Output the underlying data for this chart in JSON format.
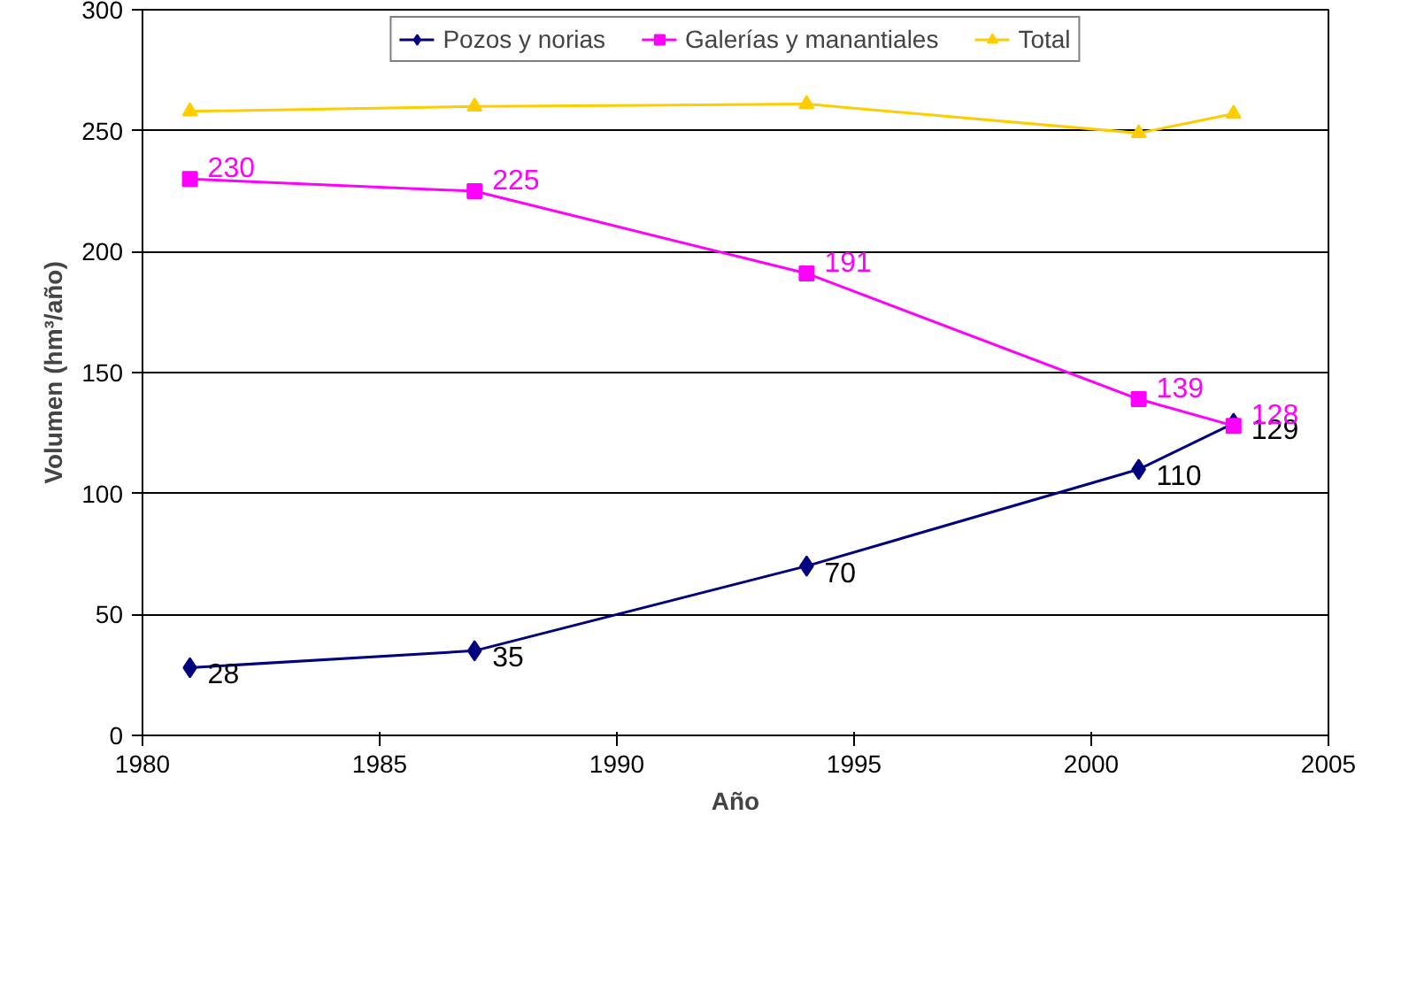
{
  "chart_data": {
    "type": "line",
    "xlabel": "Año",
    "ylabel": "Volumen (hm³/año)",
    "x": [
      1981,
      1987,
      1994,
      2001,
      2003
    ],
    "series": [
      {
        "name": "Pozos y norias",
        "color": "#000080",
        "marker": "diamond",
        "values": [
          28,
          35,
          70,
          110,
          129
        ],
        "value_labels": [
          "28",
          "35",
          "70",
          "110",
          "129"
        ]
      },
      {
        "name": "Galerías y manantiales",
        "color": "#ff00ff",
        "marker": "square",
        "values": [
          230,
          225,
          191,
          139,
          128
        ],
        "value_labels": [
          "230",
          "225",
          "191",
          "139",
          "128"
        ]
      },
      {
        "name": "Total",
        "color": "#ffcc00",
        "marker": "triangle",
        "values": [
          258,
          260,
          261,
          249,
          257
        ]
      }
    ],
    "xlim": [
      1980,
      2005
    ],
    "xticks": [
      1980,
      1985,
      1990,
      1995,
      2000,
      2005
    ],
    "ylim": [
      0,
      300
    ],
    "yticks": [
      0,
      50,
      100,
      150,
      200,
      250,
      300
    ],
    "grid": "y",
    "legend": "top"
  }
}
